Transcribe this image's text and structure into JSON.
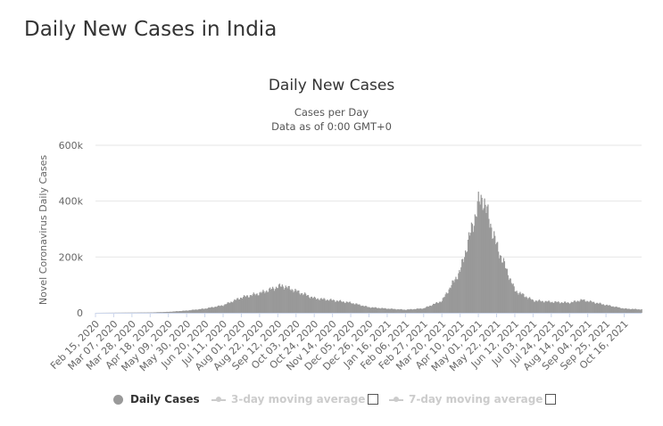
{
  "page": {
    "heading": "Daily New Cases in India"
  },
  "chart_data": {
    "type": "bar",
    "title": "Daily New Cases",
    "subtitle_lines": [
      "Cases per Day",
      "Data as of 0:00 GMT+0"
    ],
    "xlabel": "",
    "ylabel": "Novel Coronavirus Daily Cases",
    "ylim": [
      0,
      600000
    ],
    "yticks": [
      0,
      200000,
      400000,
      600000
    ],
    "ytick_labels": [
      "0",
      "200k",
      "400k",
      "600k"
    ],
    "grid": true,
    "legend_position": "bottom",
    "x_start": "2020-02-15",
    "x_end": "2021-11-05",
    "xtick_labels": [
      "Feb 15, 2020",
      "Mar 07, 2020",
      "Mar 28, 2020",
      "Apr 18, 2020",
      "May 09, 2020",
      "May 30, 2020",
      "Jun 20, 2020",
      "Jul 11, 2020",
      "Aug 01, 2020",
      "Aug 22, 2020",
      "Sep 12, 2020",
      "Oct 03, 2020",
      "Oct 24, 2020",
      "Nov 14, 2020",
      "Dec 05, 2020",
      "Dec 26, 2020",
      "Jan 16, 2021",
      "Feb 06, 2021",
      "Feb 27, 2021",
      "Mar 20, 2021",
      "Apr 10, 2021",
      "May 01, 2021",
      "May 22, 2021",
      "Jun 12, 2021",
      "Jul 03, 2021",
      "Jul 24, 2021",
      "Aug 14, 2021",
      "Sep 04, 2021",
      "Sep 25, 2021",
      "Oct 16, 2021"
    ],
    "key_points": [
      {
        "date": "2020-02-15",
        "value": 0
      },
      {
        "date": "2020-04-18",
        "value": 1300
      },
      {
        "date": "2020-05-09",
        "value": 3400
      },
      {
        "date": "2020-05-30",
        "value": 8000
      },
      {
        "date": "2020-06-20",
        "value": 15000
      },
      {
        "date": "2020-07-11",
        "value": 27000
      },
      {
        "date": "2020-08-01",
        "value": 55000
      },
      {
        "date": "2020-08-22",
        "value": 70000
      },
      {
        "date": "2020-09-12",
        "value": 93000
      },
      {
        "date": "2020-09-17",
        "value": 97000
      },
      {
        "date": "2020-10-03",
        "value": 78000
      },
      {
        "date": "2020-10-24",
        "value": 52000
      },
      {
        "date": "2020-11-14",
        "value": 45000
      },
      {
        "date": "2020-12-05",
        "value": 36000
      },
      {
        "date": "2020-12-26",
        "value": 20000
      },
      {
        "date": "2021-01-16",
        "value": 15000
      },
      {
        "date": "2021-02-06",
        "value": 11000
      },
      {
        "date": "2021-02-27",
        "value": 16000
      },
      {
        "date": "2021-03-20",
        "value": 43000
      },
      {
        "date": "2021-04-10",
        "value": 150000
      },
      {
        "date": "2021-05-01",
        "value": 390000
      },
      {
        "date": "2021-05-06",
        "value": 414000
      },
      {
        "date": "2021-05-22",
        "value": 240000
      },
      {
        "date": "2021-06-12",
        "value": 80000
      },
      {
        "date": "2021-07-03",
        "value": 44000
      },
      {
        "date": "2021-07-24",
        "value": 39000
      },
      {
        "date": "2021-08-14",
        "value": 36000
      },
      {
        "date": "2021-08-28",
        "value": 46000
      },
      {
        "date": "2021-09-04",
        "value": 42000
      },
      {
        "date": "2021-09-25",
        "value": 28000
      },
      {
        "date": "2021-10-16",
        "value": 15000
      },
      {
        "date": "2021-11-05",
        "value": 12000
      }
    ],
    "series": [
      {
        "name": "Daily Cases",
        "color": "#999999",
        "visible": true
      },
      {
        "name": "3-day moving average",
        "color": "#cccccc",
        "visible": false
      },
      {
        "name": "7-day moving average",
        "color": "#cccccc",
        "visible": false
      }
    ]
  }
}
